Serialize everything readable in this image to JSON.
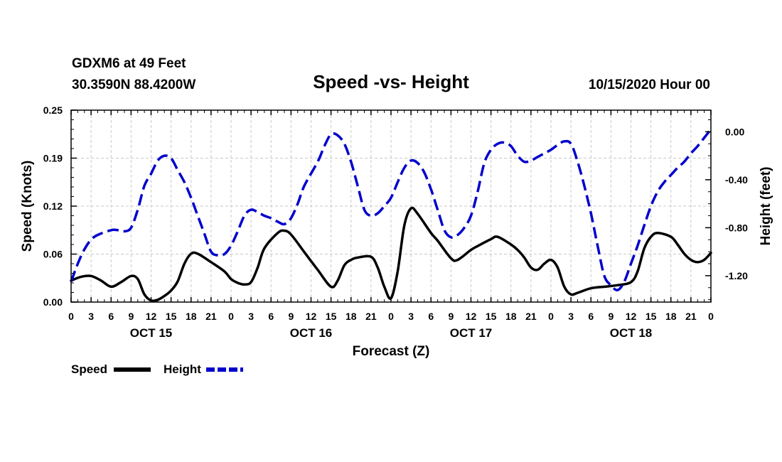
{
  "header": {
    "station": "GDXM6 at 49 Feet",
    "location": "30.3590N 88.4200W",
    "title": "Speed -vs- Height",
    "datetime": "10/15/2020 Hour 00"
  },
  "chart_data": {
    "type": "line",
    "title": "Speed -vs- Height",
    "xlabel": "Forecast (Z)",
    "ylabel_left": "Speed (Knots)",
    "ylabel_right": "Height (feet)",
    "x_range": [
      0,
      96
    ],
    "y_left_range": [
      0,
      0.25
    ],
    "y_right_range": [
      -1.42,
      0.18
    ],
    "y_left_ticks": [
      "0.00",
      "0.06",
      "0.12",
      "0.19",
      "0.25"
    ],
    "y_left_tick_values": [
      0,
      0.0625,
      0.125,
      0.1875,
      0.25
    ],
    "y_right_ticks": [
      "0.00",
      "-0.40",
      "-0.80",
      "-1.20"
    ],
    "y_right_tick_values": [
      0,
      -0.4,
      -0.8,
      -1.2
    ],
    "x_ticks": [
      {
        "x": 0,
        "label": "0"
      },
      {
        "x": 3,
        "label": "3"
      },
      {
        "x": 6,
        "label": "6"
      },
      {
        "x": 9,
        "label": "9"
      },
      {
        "x": 12,
        "label": "12"
      },
      {
        "x": 15,
        "label": "15"
      },
      {
        "x": 18,
        "label": "18"
      },
      {
        "x": 21,
        "label": "21"
      },
      {
        "x": 24,
        "label": "0"
      },
      {
        "x": 27,
        "label": "3"
      },
      {
        "x": 30,
        "label": "6"
      },
      {
        "x": 33,
        "label": "9"
      },
      {
        "x": 36,
        "label": "12"
      },
      {
        "x": 39,
        "label": "15"
      },
      {
        "x": 42,
        "label": "18"
      },
      {
        "x": 45,
        "label": "21"
      },
      {
        "x": 48,
        "label": "0"
      },
      {
        "x": 51,
        "label": "3"
      },
      {
        "x": 54,
        "label": "6"
      },
      {
        "x": 57,
        "label": "9"
      },
      {
        "x": 60,
        "label": "12"
      },
      {
        "x": 63,
        "label": "15"
      },
      {
        "x": 66,
        "label": "18"
      },
      {
        "x": 69,
        "label": "21"
      },
      {
        "x": 72,
        "label": "0"
      },
      {
        "x": 75,
        "label": "3"
      },
      {
        "x": 78,
        "label": "6"
      },
      {
        "x": 81,
        "label": "9"
      },
      {
        "x": 84,
        "label": "12"
      },
      {
        "x": 87,
        "label": "15"
      },
      {
        "x": 90,
        "label": "18"
      },
      {
        "x": 93,
        "label": "21"
      },
      {
        "x": 96,
        "label": "0"
      }
    ],
    "day_labels": [
      {
        "x": 12,
        "label": "OCT 15"
      },
      {
        "x": 36,
        "label": "OCT 16"
      },
      {
        "x": 60,
        "label": "OCT 17"
      },
      {
        "x": 84,
        "label": "OCT 18"
      }
    ],
    "grid": true,
    "legend": "bottom-left",
    "series": [
      {
        "name": "Speed",
        "axis": "left",
        "color": "#000000",
        "dash": "solid",
        "points": [
          [
            0,
            0.028
          ],
          [
            1.5,
            0.033
          ],
          [
            3,
            0.034
          ],
          [
            4.5,
            0.028
          ],
          [
            6,
            0.02
          ],
          [
            7.5,
            0.026
          ],
          [
            9,
            0.034
          ],
          [
            10,
            0.03
          ],
          [
            11,
            0.01
          ],
          [
            12,
            0.002
          ],
          [
            13,
            0.003
          ],
          [
            14,
            0.008
          ],
          [
            15,
            0.015
          ],
          [
            16,
            0.027
          ],
          [
            17,
            0.05
          ],
          [
            18,
            0.063
          ],
          [
            19,
            0.063
          ],
          [
            21,
            0.052
          ],
          [
            23,
            0.04
          ],
          [
            24,
            0.03
          ],
          [
            25,
            0.025
          ],
          [
            26,
            0.023
          ],
          [
            27,
            0.026
          ],
          [
            28,
            0.045
          ],
          [
            29,
            0.07
          ],
          [
            31,
            0.09
          ],
          [
            32,
            0.093
          ],
          [
            33,
            0.088
          ],
          [
            35,
            0.065
          ],
          [
            37,
            0.042
          ],
          [
            39,
            0.02
          ],
          [
            40,
            0.028
          ],
          [
            41,
            0.048
          ],
          [
            42,
            0.055
          ],
          [
            43,
            0.058
          ],
          [
            45,
            0.059
          ],
          [
            46,
            0.045
          ],
          [
            47,
            0.02
          ],
          [
            48,
            0.005
          ],
          [
            49,
            0.04
          ],
          [
            50,
            0.1
          ],
          [
            51,
            0.122
          ],
          [
            52,
            0.115
          ],
          [
            54,
            0.09
          ],
          [
            55,
            0.08
          ],
          [
            57,
            0.057
          ],
          [
            58,
            0.055
          ],
          [
            60,
            0.068
          ],
          [
            61,
            0.073
          ],
          [
            63,
            0.082
          ],
          [
            64,
            0.085
          ],
          [
            66,
            0.075
          ],
          [
            67,
            0.068
          ],
          [
            68,
            0.058
          ],
          [
            69,
            0.045
          ],
          [
            70,
            0.042
          ],
          [
            71,
            0.05
          ],
          [
            72,
            0.055
          ],
          [
            73,
            0.045
          ],
          [
            74,
            0.02
          ],
          [
            75,
            0.01
          ],
          [
            76,
            0.012
          ],
          [
            78,
            0.018
          ],
          [
            80,
            0.02
          ],
          [
            82,
            0.022
          ],
          [
            84,
            0.026
          ],
          [
            85,
            0.04
          ],
          [
            86,
            0.07
          ],
          [
            87,
            0.085
          ],
          [
            88,
            0.09
          ],
          [
            90,
            0.085
          ],
          [
            91,
            0.075
          ],
          [
            92,
            0.063
          ],
          [
            93,
            0.055
          ],
          [
            94,
            0.052
          ],
          [
            95,
            0.055
          ],
          [
            96,
            0.064
          ]
        ]
      },
      {
        "name": "Height",
        "axis": "right",
        "color": "#0000cc",
        "dash": "dashed",
        "points": [
          [
            0,
            -1.25
          ],
          [
            1,
            -1.1
          ],
          [
            2,
            -0.98
          ],
          [
            3,
            -0.9
          ],
          [
            4,
            -0.86
          ],
          [
            6,
            -0.82
          ],
          [
            7,
            -0.82
          ],
          [
            8,
            -0.83
          ],
          [
            9,
            -0.8
          ],
          [
            10,
            -0.65
          ],
          [
            11,
            -0.45
          ],
          [
            12,
            -0.35
          ],
          [
            13,
            -0.24
          ],
          [
            14,
            -0.2
          ],
          [
            15,
            -0.22
          ],
          [
            16,
            -0.32
          ],
          [
            17,
            -0.42
          ],
          [
            18,
            -0.55
          ],
          [
            19,
            -0.7
          ],
          [
            20,
            -0.85
          ],
          [
            21,
            -1.0
          ],
          [
            22,
            -1.03
          ],
          [
            23,
            -1.02
          ],
          [
            24,
            -0.95
          ],
          [
            25,
            -0.83
          ],
          [
            26,
            -0.7
          ],
          [
            27,
            -0.65
          ],
          [
            28,
            -0.67
          ],
          [
            29,
            -0.7
          ],
          [
            30,
            -0.72
          ],
          [
            31,
            -0.75
          ],
          [
            32,
            -0.77
          ],
          [
            33,
            -0.72
          ],
          [
            34,
            -0.6
          ],
          [
            35,
            -0.45
          ],
          [
            37,
            -0.25
          ],
          [
            38,
            -0.12
          ],
          [
            39,
            -0.02
          ],
          [
            40,
            -0.03
          ],
          [
            41,
            -0.1
          ],
          [
            42,
            -0.25
          ],
          [
            43,
            -0.45
          ],
          [
            44,
            -0.65
          ],
          [
            45,
            -0.7
          ],
          [
            46,
            -0.68
          ],
          [
            47,
            -0.62
          ],
          [
            48,
            -0.55
          ],
          [
            49,
            -0.42
          ],
          [
            50,
            -0.3
          ],
          [
            51,
            -0.24
          ],
          [
            52,
            -0.26
          ],
          [
            53,
            -0.34
          ],
          [
            54,
            -0.48
          ],
          [
            55,
            -0.65
          ],
          [
            56,
            -0.82
          ],
          [
            57,
            -0.88
          ],
          [
            58,
            -0.86
          ],
          [
            59,
            -0.8
          ],
          [
            60,
            -0.7
          ],
          [
            61,
            -0.5
          ],
          [
            62,
            -0.26
          ],
          [
            63,
            -0.15
          ],
          [
            64,
            -0.1
          ],
          [
            65,
            -0.09
          ],
          [
            66,
            -0.12
          ],
          [
            67,
            -0.2
          ],
          [
            68,
            -0.25
          ],
          [
            69,
            -0.24
          ],
          [
            70,
            -0.21
          ],
          [
            71,
            -0.18
          ],
          [
            72,
            -0.15
          ],
          [
            73,
            -0.11
          ],
          [
            74,
            -0.08
          ],
          [
            75,
            -0.1
          ],
          [
            76,
            -0.25
          ],
          [
            77,
            -0.45
          ],
          [
            78,
            -0.68
          ],
          [
            79,
            -0.95
          ],
          [
            80,
            -1.2
          ],
          [
            81,
            -1.28
          ],
          [
            82,
            -1.32
          ],
          [
            83,
            -1.25
          ],
          [
            84,
            -1.1
          ],
          [
            85,
            -0.95
          ],
          [
            86,
            -0.78
          ],
          [
            87,
            -0.62
          ],
          [
            88,
            -0.5
          ],
          [
            89,
            -0.42
          ],
          [
            90,
            -0.36
          ],
          [
            91,
            -0.3
          ],
          [
            92,
            -0.25
          ],
          [
            93,
            -0.18
          ],
          [
            94,
            -0.12
          ],
          [
            95,
            -0.05
          ],
          [
            96,
            0.02
          ]
        ]
      }
    ]
  }
}
